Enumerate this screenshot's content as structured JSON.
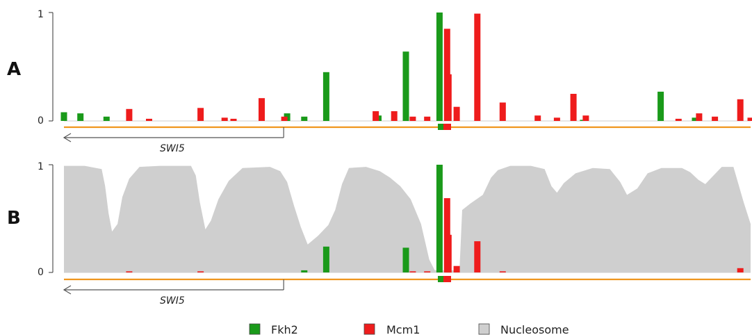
{
  "legend": [
    {
      "label": "Fkh2",
      "color": "#1a9a1a"
    },
    {
      "label": "Mcm1",
      "color": "#ee1c1c"
    },
    {
      "label": "Nucleosome",
      "color": "#cfcfcf"
    }
  ],
  "colors": {
    "fkh2": "#1a9a1a",
    "mcm1": "#ee1c1c",
    "nucleosome": "#cfcfcf",
    "track": "#f0961e",
    "gene_arrow": "#555555"
  },
  "chart_data": [
    {
      "panel": "A",
      "type": "bar",
      "ylim": [
        0,
        1
      ],
      "yticks": [
        "0",
        "1"
      ],
      "position_range": [
        0,
        1000
      ],
      "gene": {
        "name": "SWI5",
        "start": 320,
        "end": 0,
        "strand": "-"
      },
      "series": [
        {
          "name": "Fkh2",
          "points": [
            [
              0,
              0.08
            ],
            [
              24,
              0.07
            ],
            [
              62,
              0.04
            ],
            [
              325,
              0.07
            ],
            [
              350,
              0.04
            ],
            [
              382,
              0.45
            ],
            [
              458,
              0.05
            ],
            [
              498,
              0.64
            ],
            [
              547,
              1.0
            ],
            [
              756,
              0.01
            ],
            [
              869,
              0.27
            ],
            [
              919,
              0.03
            ]
          ]
        },
        {
          "name": "Mcm1",
          "points": [
            [
              95,
              0.11
            ],
            [
              124,
              0.02
            ],
            [
              199,
              0.12
            ],
            [
              234,
              0.03
            ],
            [
              247,
              0.02
            ],
            [
              288,
              0.21
            ],
            [
              321,
              0.04
            ],
            [
              454,
              0.09
            ],
            [
              481,
              0.09
            ],
            [
              508,
              0.04
            ],
            [
              529,
              0.04
            ],
            [
              558,
              0.85
            ],
            [
              560,
              0.43
            ],
            [
              572,
              0.13
            ],
            [
              602,
              0.99
            ],
            [
              639,
              0.17
            ],
            [
              690,
              0.05
            ],
            [
              718,
              0.03
            ],
            [
              742,
              0.25
            ],
            [
              760,
              0.05
            ],
            [
              895,
              0.02
            ],
            [
              925,
              0.07
            ],
            [
              948,
              0.04
            ],
            [
              985,
              0.2
            ],
            [
              1000,
              0.03
            ]
          ]
        }
      ]
    },
    {
      "panel": "B",
      "type": "bar",
      "ylim": [
        0,
        1
      ],
      "yticks": [
        "0",
        "1"
      ],
      "position_range": [
        0,
        1000
      ],
      "gene": {
        "name": "SWI5",
        "start": 320,
        "end": 0,
        "strand": "-"
      },
      "series": [
        {
          "name": "Fkh2",
          "points": [
            [
              350,
              0.02
            ],
            [
              382,
              0.24
            ],
            [
              498,
              0.23
            ],
            [
              547,
              1.0
            ]
          ]
        },
        {
          "name": "Mcm1",
          "points": [
            [
              95,
              0.01
            ],
            [
              199,
              0.01
            ],
            [
              508,
              0.01
            ],
            [
              529,
              0.01
            ],
            [
              558,
              0.69
            ],
            [
              560,
              0.35
            ],
            [
              572,
              0.06
            ],
            [
              602,
              0.29
            ],
            [
              639,
              0.01
            ],
            [
              985,
              0.04
            ]
          ]
        },
        {
          "name": "Nucleosome",
          "type": "area",
          "points": [
            [
              0,
              0.99
            ],
            [
              30,
              0.99
            ],
            [
              55,
              0.96
            ],
            [
              60,
              0.8
            ],
            [
              65,
              0.55
            ],
            [
              70,
              0.38
            ],
            [
              78,
              0.45
            ],
            [
              85,
              0.7
            ],
            [
              95,
              0.87
            ],
            [
              110,
              0.98
            ],
            [
              140,
              0.99
            ],
            [
              185,
              0.99
            ],
            [
              192,
              0.9
            ],
            [
              198,
              0.65
            ],
            [
              206,
              0.4
            ],
            [
              214,
              0.48
            ],
            [
              225,
              0.68
            ],
            [
              240,
              0.85
            ],
            [
              260,
              0.97
            ],
            [
              300,
              0.98
            ],
            [
              315,
              0.94
            ],
            [
              325,
              0.84
            ],
            [
              335,
              0.62
            ],
            [
              345,
              0.42
            ],
            [
              355,
              0.26
            ],
            [
              370,
              0.34
            ],
            [
              385,
              0.44
            ],
            [
              395,
              0.58
            ],
            [
              405,
              0.82
            ],
            [
              415,
              0.97
            ],
            [
              440,
              0.98
            ],
            [
              460,
              0.94
            ],
            [
              475,
              0.88
            ],
            [
              490,
              0.8
            ],
            [
              505,
              0.68
            ],
            [
              520,
              0.45
            ],
            [
              532,
              0.12
            ],
            [
              540,
              0.02
            ],
            [
              576,
              0.02
            ],
            [
              580,
              0.58
            ],
            [
              592,
              0.64
            ],
            [
              610,
              0.72
            ],
            [
              622,
              0.88
            ],
            [
              632,
              0.95
            ],
            [
              650,
              0.99
            ],
            [
              680,
              0.99
            ],
            [
              700,
              0.96
            ],
            [
              710,
              0.8
            ],
            [
              718,
              0.74
            ],
            [
              728,
              0.83
            ],
            [
              745,
              0.92
            ],
            [
              770,
              0.97
            ],
            [
              795,
              0.96
            ],
            [
              810,
              0.84
            ],
            [
              820,
              0.72
            ],
            [
              835,
              0.78
            ],
            [
              850,
              0.92
            ],
            [
              870,
              0.97
            ],
            [
              900,
              0.97
            ],
            [
              912,
              0.93
            ],
            [
              924,
              0.86
            ],
            [
              934,
              0.82
            ],
            [
              946,
              0.9
            ],
            [
              958,
              0.98
            ],
            [
              975,
              0.98
            ],
            [
              990,
              0.65
            ],
            [
              1000,
              0.45
            ]
          ]
        }
      ]
    }
  ]
}
